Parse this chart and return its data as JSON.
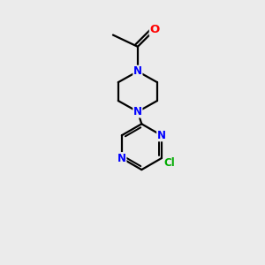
{
  "bg_color": "#ebebeb",
  "bond_color": "#000000",
  "N_color": "#0000ff",
  "O_color": "#ff0000",
  "Cl_color": "#00aa00",
  "line_width": 1.6,
  "font_size_atom": 8.5,
  "fig_size": [
    3.0,
    3.0
  ],
  "dpi": 100,
  "xlim": [
    0,
    10
  ],
  "ylim": [
    0,
    10
  ]
}
